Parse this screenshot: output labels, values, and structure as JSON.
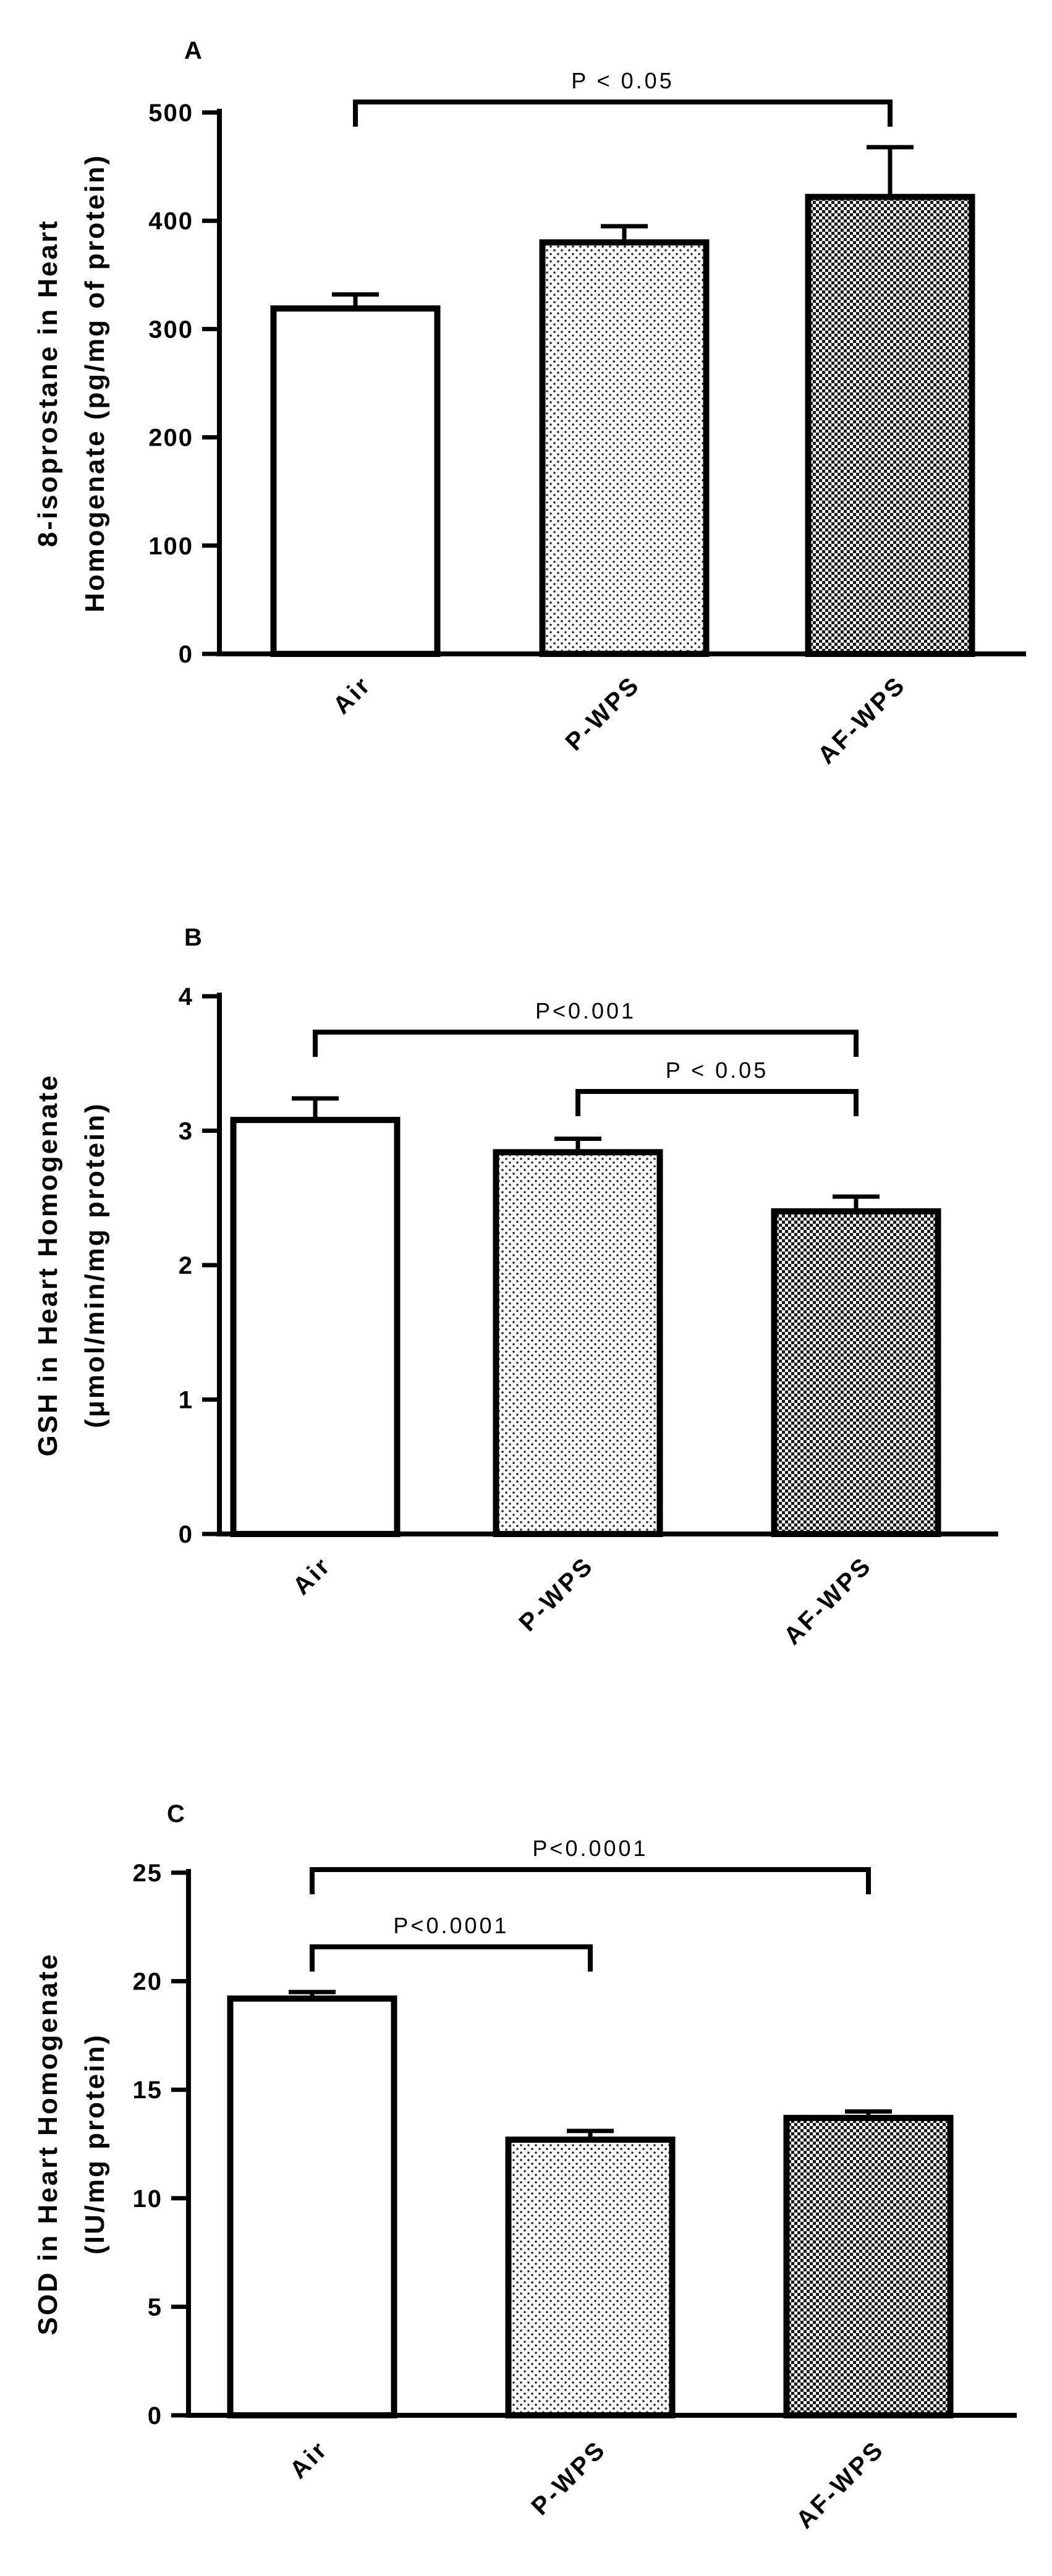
{
  "chart_data": [
    {
      "panel_label": "A",
      "type": "bar",
      "categories": [
        "Air",
        "P-WPS",
        "AF-WPS"
      ],
      "values": [
        319,
        380,
        422
      ],
      "errors": [
        13,
        15,
        46
      ],
      "ylabel_lines": [
        "8-isoprostane in Heart",
        "Homogenate (pg/mg of protein)"
      ],
      "ylim": [
        0,
        500
      ],
      "yticks": [
        0,
        100,
        200,
        300,
        400,
        500
      ],
      "patterns": [
        "white",
        "fine-dots",
        "dense-checker"
      ],
      "brackets": [
        {
          "from": 0,
          "to": 2,
          "label": "P < 0.05",
          "level": 1
        }
      ]
    },
    {
      "panel_label": "B",
      "type": "bar",
      "categories": [
        "Air",
        "P-WPS",
        "AF-WPS"
      ],
      "values": [
        3.08,
        2.84,
        2.4
      ],
      "errors": [
        0.16,
        0.1,
        0.11
      ],
      "ylabel_lines": [
        "GSH in Heart Homogenate",
        "(μmol/min/mg protein)"
      ],
      "ylim": [
        0,
        4
      ],
      "yticks": [
        0,
        1,
        2,
        3,
        4
      ],
      "patterns": [
        "white",
        "fine-dots",
        "dense-checker"
      ],
      "brackets": [
        {
          "from": 0,
          "to": 2,
          "label": "P<0.001",
          "level": 2
        },
        {
          "from": 1,
          "to": 2,
          "label": "P < 0.05",
          "level": 1
        }
      ]
    },
    {
      "panel_label": "C",
      "type": "bar",
      "categories": [
        "Air",
        "P-WPS",
        "AF-WPS"
      ],
      "values": [
        19.2,
        12.7,
        13.7
      ],
      "errors": [
        0.3,
        0.4,
        0.3
      ],
      "ylabel_lines": [
        "SOD in Heart Homogenate",
        "(IU/mg protein)"
      ],
      "ylim": [
        0,
        25
      ],
      "yticks": [
        0,
        5,
        10,
        15,
        20,
        25
      ],
      "patterns": [
        "white",
        "fine-dots",
        "dense-checker"
      ],
      "brackets": [
        {
          "from": 0,
          "to": 2,
          "label": "P<0.0001",
          "level": 2
        },
        {
          "from": 0,
          "to": 1,
          "label": "P<0.0001",
          "level": 1
        }
      ]
    }
  ]
}
